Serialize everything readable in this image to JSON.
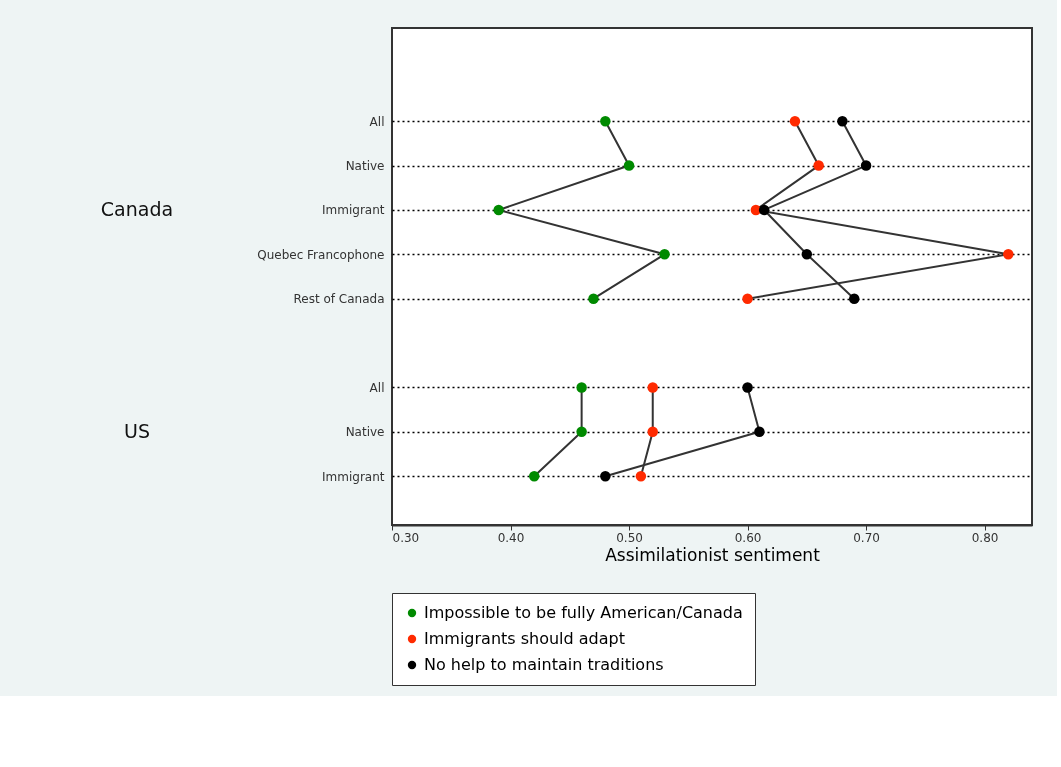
{
  "chart_data": {
    "type": "line",
    "orientation": "horizontal",
    "xlabel": "Assimilationist sentiment",
    "categories": [
      "All",
      "Native",
      "Immigrant",
      "Quebec Francophone",
      "Rest of Canada",
      null,
      "All",
      "Native",
      "Immigrant"
    ],
    "annotations": [
      "Canada",
      "US"
    ],
    "series": [
      {
        "name": "Impossible to be fully American/Canada",
        "color": "#008a00",
        "values": [
          0.48,
          0.5,
          0.39,
          0.53,
          0.47,
          null,
          0.46,
          0.46,
          0.42
        ]
      },
      {
        "name": "Immigrants should adapt",
        "color": "#ff2a00",
        "values": [
          0.64,
          0.66,
          0.607,
          0.82,
          0.6,
          null,
          0.52,
          0.52,
          0.51
        ]
      },
      {
        "name": "No help to maintain traditions",
        "color": "#000000",
        "values": [
          0.68,
          0.7,
          0.614,
          0.65,
          0.69,
          null,
          0.6,
          0.61,
          0.48
        ]
      }
    ],
    "xlim": [
      0.3,
      0.84
    ],
    "xticks": [
      {
        "value": 0.3,
        "label": "0.30"
      },
      {
        "value": 0.4,
        "label": "0.40"
      },
      {
        "value": 0.5,
        "label": "0.50"
      },
      {
        "value": 0.6,
        "label": "0.60"
      },
      {
        "value": 0.7,
        "label": "0.70"
      },
      {
        "value": 0.8,
        "label": "0.80"
      }
    ],
    "grid": "y",
    "marker": "circle",
    "legend": "bottom"
  }
}
